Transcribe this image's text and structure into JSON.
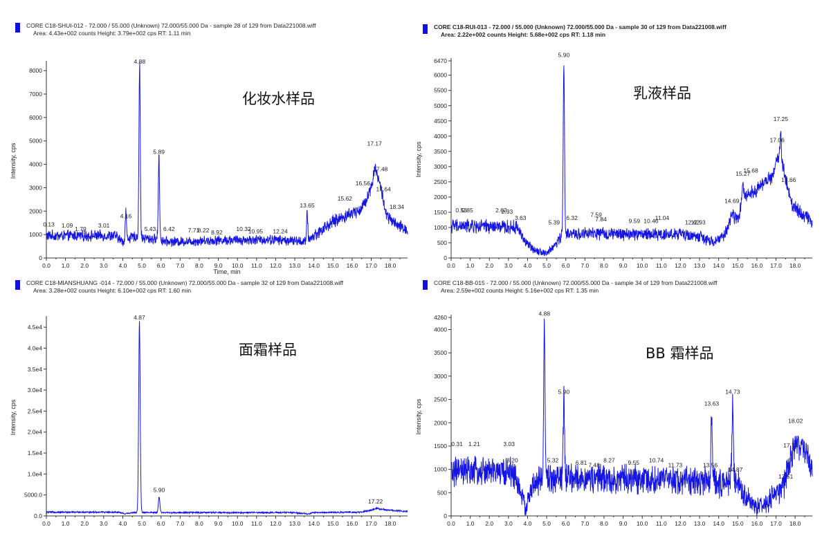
{
  "colors": {
    "trace": "#1414e6",
    "axis": "#333333",
    "legend_swatch": "#1010e0"
  },
  "chart_data": [
    {
      "type": "line",
      "header_line1": "CORE C18-SHUI-012 - 72.000 / 55.000 (Unknown) 72.000/55.000 Da - sample 28 of 129 from Data221008.wiff",
      "header_line2": "Area: 4.43e+002 counts  Height: 3.79e+002 cps  RT: 1.11 min",
      "header_bold": false,
      "sample_label": "化妆水样品",
      "ylabel": "Intensity, cps",
      "xlabel": "Time, min",
      "xlim": [
        0,
        18.9
      ],
      "ylim": [
        0,
        8300
      ],
      "x_ticks": [
        "0.0",
        "1.0",
        "2.0",
        "3.0",
        "4.0",
        "5.0",
        "6.0",
        "7.0",
        "8.0",
        "9.0",
        "10.0",
        "11.0",
        "12.0",
        "13.0",
        "14.0",
        "15.0",
        "16.0",
        "17.0",
        "18.0"
      ],
      "y_ticks": [
        "0",
        "1000",
        "2000",
        "3000",
        "4000",
        "5000",
        "6000",
        "7000",
        "8000"
      ],
      "y_tick_values": [
        0,
        1000,
        2000,
        3000,
        4000,
        5000,
        6000,
        7000,
        8000
      ],
      "noise_amp": 260,
      "baseline": [
        [
          0,
          950
        ],
        [
          3.6,
          950
        ],
        [
          4.0,
          700
        ],
        [
          4.3,
          850
        ],
        [
          4.7,
          900
        ],
        [
          5.0,
          850
        ],
        [
          5.8,
          800
        ],
        [
          6.3,
          700
        ],
        [
          7.0,
          700
        ],
        [
          9.0,
          760
        ],
        [
          12.0,
          780
        ],
        [
          13.6,
          700
        ],
        [
          13.9,
          900
        ],
        [
          15.0,
          1550
        ],
        [
          16.5,
          2100
        ],
        [
          17.0,
          3000
        ],
        [
          17.2,
          3900
        ],
        [
          17.5,
          3000
        ],
        [
          17.8,
          1800
        ],
        [
          18.3,
          1400
        ],
        [
          18.9,
          1200
        ]
      ],
      "peaks": [
        {
          "rt": 4.16,
          "height": 1300,
          "width": 0.03,
          "label": "4.16"
        },
        {
          "rt": 4.88,
          "height": 7400,
          "width": 0.035,
          "label": "4.88"
        },
        {
          "rt": 5.89,
          "height": 3500,
          "width": 0.035,
          "label": "5.89"
        },
        {
          "rt": 13.65,
          "height": 1200,
          "width": 0.03,
          "label": "13.65"
        }
      ],
      "annotations": [
        {
          "x": 0.13,
          "y": 1350,
          "text": "0.13"
        },
        {
          "x": 1.09,
          "y": 1300,
          "text": "1.09"
        },
        {
          "x": 1.79,
          "y": 1150,
          "text": "1.79"
        },
        {
          "x": 3.01,
          "y": 1300,
          "text": "3.01"
        },
        {
          "x": 4.16,
          "y": 1700,
          "text": "4.16"
        },
        {
          "x": 4.88,
          "y": 8300,
          "text": "4.88"
        },
        {
          "x": 5.43,
          "y": 1150,
          "text": "5.43"
        },
        {
          "x": 5.89,
          "y": 4450,
          "text": "5.89"
        },
        {
          "x": 6.42,
          "y": 1150,
          "text": "6.42"
        },
        {
          "x": 7.71,
          "y": 1100,
          "text": "7.71"
        },
        {
          "x": 8.22,
          "y": 1100,
          "text": "8.22"
        },
        {
          "x": 8.92,
          "y": 1000,
          "text": "8.92"
        },
        {
          "x": 10.32,
          "y": 1150,
          "text": "10.32"
        },
        {
          "x": 10.95,
          "y": 1050,
          "text": "10.95"
        },
        {
          "x": 12.24,
          "y": 1050,
          "text": "12.24"
        },
        {
          "x": 13.65,
          "y": 2150,
          "text": "13.65"
        },
        {
          "x": 15.62,
          "y": 2450,
          "text": "15.62"
        },
        {
          "x": 16.56,
          "y": 3100,
          "text": "16.56"
        },
        {
          "x": 17.17,
          "y": 4800,
          "text": "17.17"
        },
        {
          "x": 17.48,
          "y": 3700,
          "text": "17.48"
        },
        {
          "x": 17.64,
          "y": 2850,
          "text": "17.64"
        },
        {
          "x": 18.34,
          "y": 2100,
          "text": "18.34"
        }
      ]
    },
    {
      "type": "line",
      "header_line1": "CORE C18-RUI-013 - 72.000 / 55.000 (Unknown) 72.000/55.000 Da - sample 30 of 129 from Data221008.wiff",
      "header_line2": "Area: 2.22e+002 counts  Height: 5.68e+002 cps  RT: 1.18 min",
      "header_bold": true,
      "sample_label": "乳液样品",
      "ylabel": "Intensity, cps",
      "xlabel": "",
      "xlim": [
        0,
        18.9
      ],
      "ylim": [
        0,
        6470
      ],
      "x_ticks": [
        "0.0",
        "1.0",
        "2.0",
        "3.0",
        "4.0",
        "5.0",
        "6.0",
        "7.0",
        "8.0",
        "9.0",
        "10.0",
        "11.0",
        "12.0",
        "13.0",
        "14.0",
        "15.0",
        "16.0",
        "17.0",
        "18.0"
      ],
      "y_ticks": [
        "0",
        "500",
        "1000",
        "1500",
        "2000",
        "2500",
        "3000",
        "3500",
        "4000",
        "4500",
        "5000",
        "5500",
        "6000",
        "6470"
      ],
      "y_tick_values": [
        0,
        500,
        1000,
        1500,
        2000,
        2500,
        3000,
        3500,
        4000,
        4500,
        5000,
        5500,
        6000,
        6470
      ],
      "noise_amp": 220,
      "baseline": [
        [
          0,
          1050
        ],
        [
          3.5,
          1000
        ],
        [
          3.9,
          500
        ],
        [
          4.3,
          300
        ],
        [
          4.7,
          200
        ],
        [
          5.0,
          150
        ],
        [
          5.4,
          400
        ],
        [
          5.8,
          750
        ],
        [
          7.0,
          800
        ],
        [
          9.0,
          780
        ],
        [
          12.0,
          780
        ],
        [
          13.0,
          700
        ],
        [
          13.7,
          500
        ],
        [
          14.3,
          750
        ],
        [
          14.7,
          1400
        ],
        [
          15.0,
          1300
        ],
        [
          15.3,
          2050
        ],
        [
          16.0,
          2250
        ],
        [
          16.8,
          2700
        ],
        [
          17.2,
          3500
        ],
        [
          17.5,
          2600
        ],
        [
          17.8,
          1800
        ],
        [
          18.3,
          1500
        ],
        [
          18.9,
          1200
        ]
      ],
      "peaks": [
        {
          "rt": 5.9,
          "height": 5600,
          "width": 0.035,
          "label": "5.90"
        },
        {
          "rt": 15.27,
          "height": 400,
          "width": 0.03,
          "label": "15.27"
        },
        {
          "rt": 17.25,
          "height": 700,
          "width": 0.03,
          "label": "17.25"
        }
      ],
      "annotations": [
        {
          "x": 0.53,
          "y": 1500,
          "text": "0.53"
        },
        {
          "x": 0.85,
          "y": 1500,
          "text": "0.85"
        },
        {
          "x": 2.62,
          "y": 1500,
          "text": "2.62"
        },
        {
          "x": 2.93,
          "y": 1450,
          "text": "2.93"
        },
        {
          "x": 3.63,
          "y": 1250,
          "text": "3.63"
        },
        {
          "x": 5.39,
          "y": 1100,
          "text": "5.39"
        },
        {
          "x": 5.9,
          "y": 6600,
          "text": "5.90"
        },
        {
          "x": 6.32,
          "y": 1250,
          "text": "6.32"
        },
        {
          "x": 7.59,
          "y": 1350,
          "text": "7.59"
        },
        {
          "x": 7.84,
          "y": 1200,
          "text": "7.84"
        },
        {
          "x": 9.59,
          "y": 1150,
          "text": "9.59"
        },
        {
          "x": 10.46,
          "y": 1150,
          "text": "10.46"
        },
        {
          "x": 11.04,
          "y": 1250,
          "text": "11.04"
        },
        {
          "x": 12.62,
          "y": 1100,
          "text": "12.62"
        },
        {
          "x": 12.93,
          "y": 1100,
          "text": "12.93"
        },
        {
          "x": 14.69,
          "y": 1800,
          "text": "14.69"
        },
        {
          "x": 15.27,
          "y": 2700,
          "text": "15.27"
        },
        {
          "x": 15.68,
          "y": 2800,
          "text": "15.68"
        },
        {
          "x": 17.06,
          "y": 3800,
          "text": "17.06"
        },
        {
          "x": 17.25,
          "y": 4500,
          "text": "17.25"
        },
        {
          "x": 17.66,
          "y": 2500,
          "text": "17.66"
        }
      ]
    },
    {
      "type": "line",
      "header_line1": "CORE C18-MIANSHUANG -014 - 72.000 / 55.000 (Unknown) 72.000/55.000 Da - sample 32 of 129 from Data221008.wiff",
      "header_line2": "Area: 3.28e+002 counts  Height: 6.10e+002 cps  RT: 1.60 min",
      "header_bold": false,
      "sample_label": "面霜样品",
      "ylabel": "Intensity, cps",
      "xlabel": "",
      "xlim": [
        0,
        18.9
      ],
      "ylim": [
        0,
        47000
      ],
      "x_ticks": [
        "0.0",
        "1.0",
        "2.0",
        "3.0",
        "4.0",
        "5.0",
        "6.0",
        "7.0",
        "8.0",
        "9.0",
        "10.0",
        "11.0",
        "12.0",
        "13.0",
        "14.0",
        "15.0",
        "16.0",
        "17.0",
        "18.0"
      ],
      "y_ticks": [
        "0.0",
        "5000.0",
        "1.0e4",
        "1.5e4",
        "2.0e4",
        "2.5e4",
        "3.0e4",
        "3.5e4",
        "4.0e4",
        "4.5e4"
      ],
      "y_tick_values": [
        0,
        5000,
        10000,
        15000,
        20000,
        25000,
        30000,
        35000,
        40000,
        45000
      ],
      "noise_amp": 380,
      "baseline": [
        [
          0,
          900
        ],
        [
          3.8,
          900
        ],
        [
          4.1,
          500
        ],
        [
          4.5,
          800
        ],
        [
          6.5,
          800
        ],
        [
          13.0,
          800
        ],
        [
          13.7,
          500
        ],
        [
          14.0,
          800
        ],
        [
          16.5,
          900
        ],
        [
          17.0,
          1400
        ],
        [
          17.3,
          1800
        ],
        [
          17.8,
          1400
        ],
        [
          18.9,
          1100
        ]
      ],
      "peaks": [
        {
          "rt": 4.87,
          "height": 45500,
          "width": 0.04,
          "label": "4.87"
        },
        {
          "rt": 5.9,
          "height": 3800,
          "width": 0.04,
          "label": "5.90"
        }
      ],
      "annotations": [
        {
          "x": 4.87,
          "y": 46800,
          "text": "4.87"
        },
        {
          "x": 5.9,
          "y": 5700,
          "text": "5.90"
        },
        {
          "x": 17.22,
          "y": 3000,
          "text": "17.22"
        }
      ]
    },
    {
      "type": "line",
      "header_line1": "CORE C18-BB-015 - 72.000 / 55.000 (Unknown) 72.000/55.000 Da - sample 34 of 129 from Data221008.wiff",
      "header_line2": "Area: 2.59e+002 counts  Height: 5.16e+002 cps  RT: 1.35 min",
      "header_bold": false,
      "sample_label": "BB 霜样品",
      "ylabel": "Intensity, cps",
      "xlabel": "",
      "xlim": [
        0,
        18.9
      ],
      "ylim": [
        0,
        4260
      ],
      "x_ticks": [
        "0.0",
        "1.0",
        "2.0",
        "3.0",
        "4.0",
        "5.0",
        "6.0",
        "7.0",
        "8.0",
        "9.0",
        "10.0",
        "11.0",
        "12.0",
        "13.0",
        "14.0",
        "15.0",
        "16.0",
        "17.0",
        "18.0"
      ],
      "y_ticks": [
        "0",
        "500",
        "1000",
        "1500",
        "2000",
        "2500",
        "3000",
        "3500",
        "4000",
        "4260"
      ],
      "y_tick_values": [
        0,
        500,
        1000,
        1500,
        2000,
        2500,
        3000,
        3500,
        4000,
        4260
      ],
      "noise_amp": 300,
      "baseline": [
        [
          0,
          950
        ],
        [
          3.2,
          950
        ],
        [
          3.5,
          700
        ],
        [
          3.9,
          150
        ],
        [
          4.2,
          600
        ],
        [
          4.8,
          800
        ],
        [
          6.0,
          800
        ],
        [
          10.0,
          780
        ],
        [
          13.4,
          750
        ],
        [
          14.0,
          700
        ],
        [
          14.9,
          800
        ],
        [
          15.3,
          450
        ],
        [
          16.0,
          200
        ],
        [
          16.5,
          250
        ],
        [
          17.0,
          500
        ],
        [
          17.4,
          600
        ],
        [
          17.8,
          1300
        ],
        [
          18.0,
          1600
        ],
        [
          18.4,
          1450
        ],
        [
          18.9,
          1000
        ]
      ],
      "peaks": [
        {
          "rt": 4.88,
          "height": 3350,
          "width": 0.035,
          "label": "4.88"
        },
        {
          "rt": 5.9,
          "height": 1750,
          "width": 0.035,
          "label": "5.90"
        },
        {
          "rt": 13.63,
          "height": 1500,
          "width": 0.035,
          "label": "13.63"
        },
        {
          "rt": 14.73,
          "height": 1700,
          "width": 0.035,
          "label": "14.73"
        }
      ],
      "annotations": [
        {
          "x": 0.31,
          "y": 1500,
          "text": "0.31"
        },
        {
          "x": 1.21,
          "y": 1500,
          "text": "1.21"
        },
        {
          "x": 3.03,
          "y": 1500,
          "text": "3.03"
        },
        {
          "x": 3.2,
          "y": 1150,
          "text": "3.20"
        },
        {
          "x": 4.88,
          "y": 4300,
          "text": "4.88"
        },
        {
          "x": 5.32,
          "y": 1150,
          "text": "5.32"
        },
        {
          "x": 5.9,
          "y": 2620,
          "text": "5.90"
        },
        {
          "x": 6.81,
          "y": 1100,
          "text": "6.81"
        },
        {
          "x": 7.48,
          "y": 1050,
          "text": "7.48"
        },
        {
          "x": 8.27,
          "y": 1150,
          "text": "8.27"
        },
        {
          "x": 9.55,
          "y": 1100,
          "text": "9.55"
        },
        {
          "x": 10.74,
          "y": 1150,
          "text": "10.74"
        },
        {
          "x": 11.73,
          "y": 1050,
          "text": "11.73"
        },
        {
          "x": 13.56,
          "y": 1050,
          "text": "13.56"
        },
        {
          "x": 13.63,
          "y": 2370,
          "text": "13.63"
        },
        {
          "x": 14.73,
          "y": 2620,
          "text": "14.73"
        },
        {
          "x": 14.87,
          "y": 950,
          "text": "14.87"
        },
        {
          "x": 17.51,
          "y": 800,
          "text": "17.51"
        },
        {
          "x": 17.77,
          "y": 1470,
          "text": "17.77"
        },
        {
          "x": 18.02,
          "y": 2000,
          "text": "18.02"
        }
      ]
    }
  ]
}
